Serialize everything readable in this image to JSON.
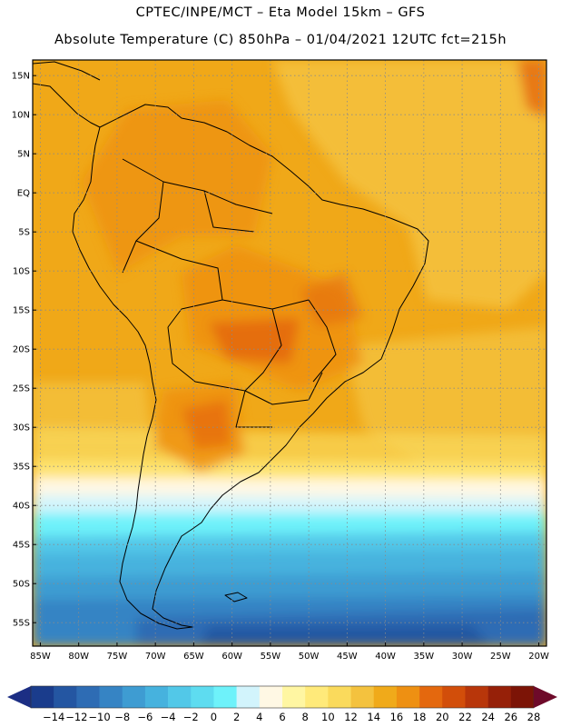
{
  "header": {
    "line1": "CPTEC/INPE/MCT –   Eta Model 15km – GFS",
    "line2": "Absolute Temperature (C) 850hPa – 01/04/2021 12UTC fct=215h"
  },
  "map": {
    "lon_range": [
      -86,
      -19
    ],
    "lat_range": [
      -58,
      17
    ],
    "lat_ticks": [
      {
        "value": 15,
        "label": "15N"
      },
      {
        "value": 10,
        "label": "10N"
      },
      {
        "value": 5,
        "label": "5N"
      },
      {
        "value": 0,
        "label": "EQ"
      },
      {
        "value": -5,
        "label": "5S"
      },
      {
        "value": -10,
        "label": "10S"
      },
      {
        "value": -15,
        "label": "15S"
      },
      {
        "value": -20,
        "label": "20S"
      },
      {
        "value": -25,
        "label": "25S"
      },
      {
        "value": -30,
        "label": "30S"
      },
      {
        "value": -35,
        "label": "35S"
      },
      {
        "value": -40,
        "label": "40S"
      },
      {
        "value": -45,
        "label": "45S"
      },
      {
        "value": -50,
        "label": "50S"
      },
      {
        "value": -55,
        "label": "55S"
      }
    ],
    "lon_ticks": [
      {
        "value": -85,
        "label": "85W"
      },
      {
        "value": -80,
        "label": "80W"
      },
      {
        "value": -75,
        "label": "75W"
      },
      {
        "value": -70,
        "label": "70W"
      },
      {
        "value": -65,
        "label": "65W"
      },
      {
        "value": -60,
        "label": "60W"
      },
      {
        "value": -55,
        "label": "55W"
      },
      {
        "value": -50,
        "label": "50W"
      },
      {
        "value": -45,
        "label": "45W"
      },
      {
        "value": -40,
        "label": "40W"
      },
      {
        "value": -35,
        "label": "35W"
      },
      {
        "value": -30,
        "label": "30W"
      },
      {
        "value": -25,
        "label": "25W"
      },
      {
        "value": -20,
        "label": "20W"
      }
    ],
    "base_fill_color": "#F0A818",
    "grid": true
  },
  "colorbar": {
    "labels": [
      "-14",
      "-12",
      "-10",
      "-8",
      "-6",
      "-4",
      "-2",
      "0",
      "2",
      "4",
      "6",
      "8",
      "10",
      "12",
      "14",
      "16",
      "18",
      "20",
      "22",
      "24",
      "26",
      "28"
    ],
    "colors": [
      "#1A3C8C",
      "#2456A2",
      "#2E6CB4",
      "#3684C4",
      "#3E9CD2",
      "#46B2DE",
      "#52C8E8",
      "#5EDCF0",
      "#6EF2FA",
      "#D2F4FC",
      "#FFF8E4",
      "#FFF6A2",
      "#FFEA7A",
      "#FADA5C",
      "#F4C23E",
      "#F0AA1A",
      "#EE9012",
      "#E4680E",
      "#D24E0A",
      "#B8360A",
      "#962008",
      "#7C1406"
    ],
    "end_low_color": "#1C2E84",
    "end_high_color": "#6E0A2A"
  }
}
